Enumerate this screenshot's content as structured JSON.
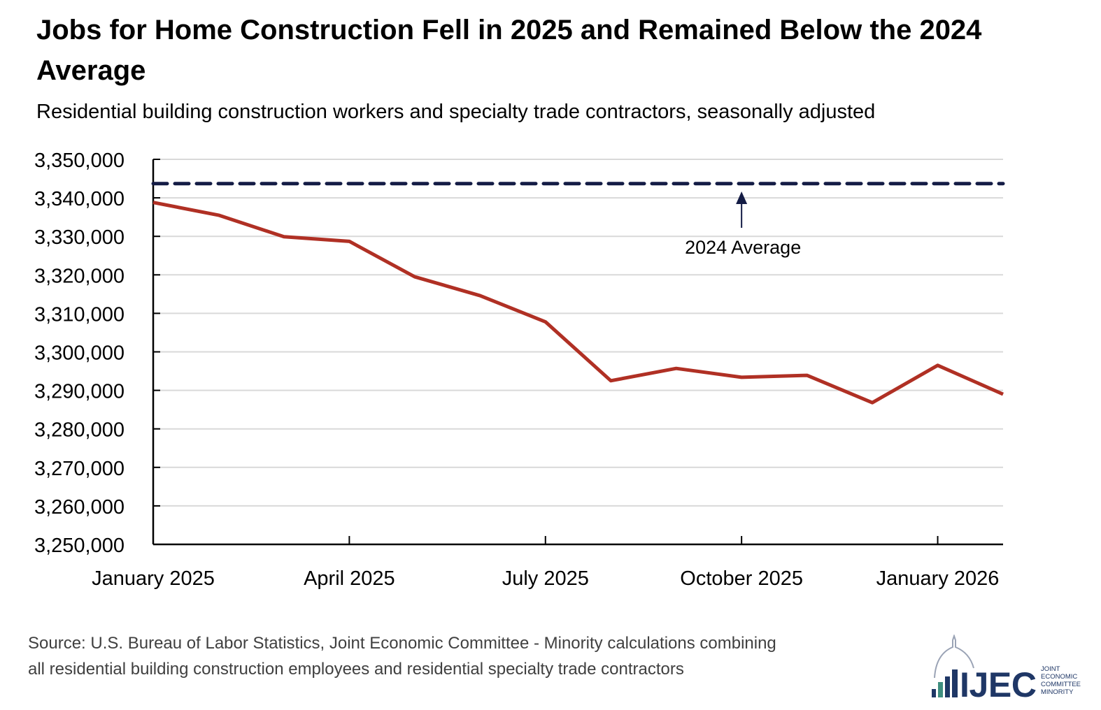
{
  "chart_data": {
    "type": "line",
    "title": "Jobs for Home Construction Fell in 2025 and Remained Below the 2024 Average",
    "subtitle": "Residential building construction workers and specialty trade contractors, seasonally adjusted",
    "xlabel": "",
    "ylabel": "",
    "x": [
      "2025-01",
      "2025-02",
      "2025-03",
      "2025-04",
      "2025-05",
      "2025-06",
      "2025-07",
      "2025-08",
      "2025-09",
      "2025-10",
      "2025-11",
      "2025-12",
      "2026-01",
      "2026-02"
    ],
    "x_tick_labels": [
      "January 2025",
      "April 2025",
      "July 2025",
      "October 2025",
      "January 2026"
    ],
    "x_tick_positions": [
      "2025-01",
      "2025-04",
      "2025-07",
      "2025-10",
      "2026-01"
    ],
    "y_tick_labels": [
      "3,350,000",
      "3,340,000",
      "3,330,000",
      "3,320,000",
      "3,310,000",
      "3,300,000",
      "3,290,000",
      "3,280,000",
      "3,270,000",
      "3,260,000",
      "3,250,000"
    ],
    "ylim": [
      3250000,
      3350000
    ],
    "grid": true,
    "series": [
      {
        "values": [
          3338800,
          3335500,
          3329900,
          3328700,
          3319500,
          3314600,
          3307800,
          3292500,
          3295700,
          3293400,
          3293900,
          3286800,
          3296500,
          3289000
        ],
        "color": "#b03024"
      }
    ],
    "reference_line": {
      "label": "2024 Average",
      "value": 3343700,
      "color": "#141c45",
      "style": "dashed"
    }
  },
  "source": {
    "line1": "Source: U.S. Bureau of Labor Statistics, Joint Economic Committee - Minority calculations combining",
    "line2": "all residential building construction employees and residential specialty trade contractors"
  },
  "logo": {
    "mark": "JEC",
    "text": [
      "JOINT",
      "ECONOMIC",
      "COMMITTEE",
      "MINORITY"
    ],
    "color": "#1f3766",
    "accent": "#3f8f7f"
  }
}
